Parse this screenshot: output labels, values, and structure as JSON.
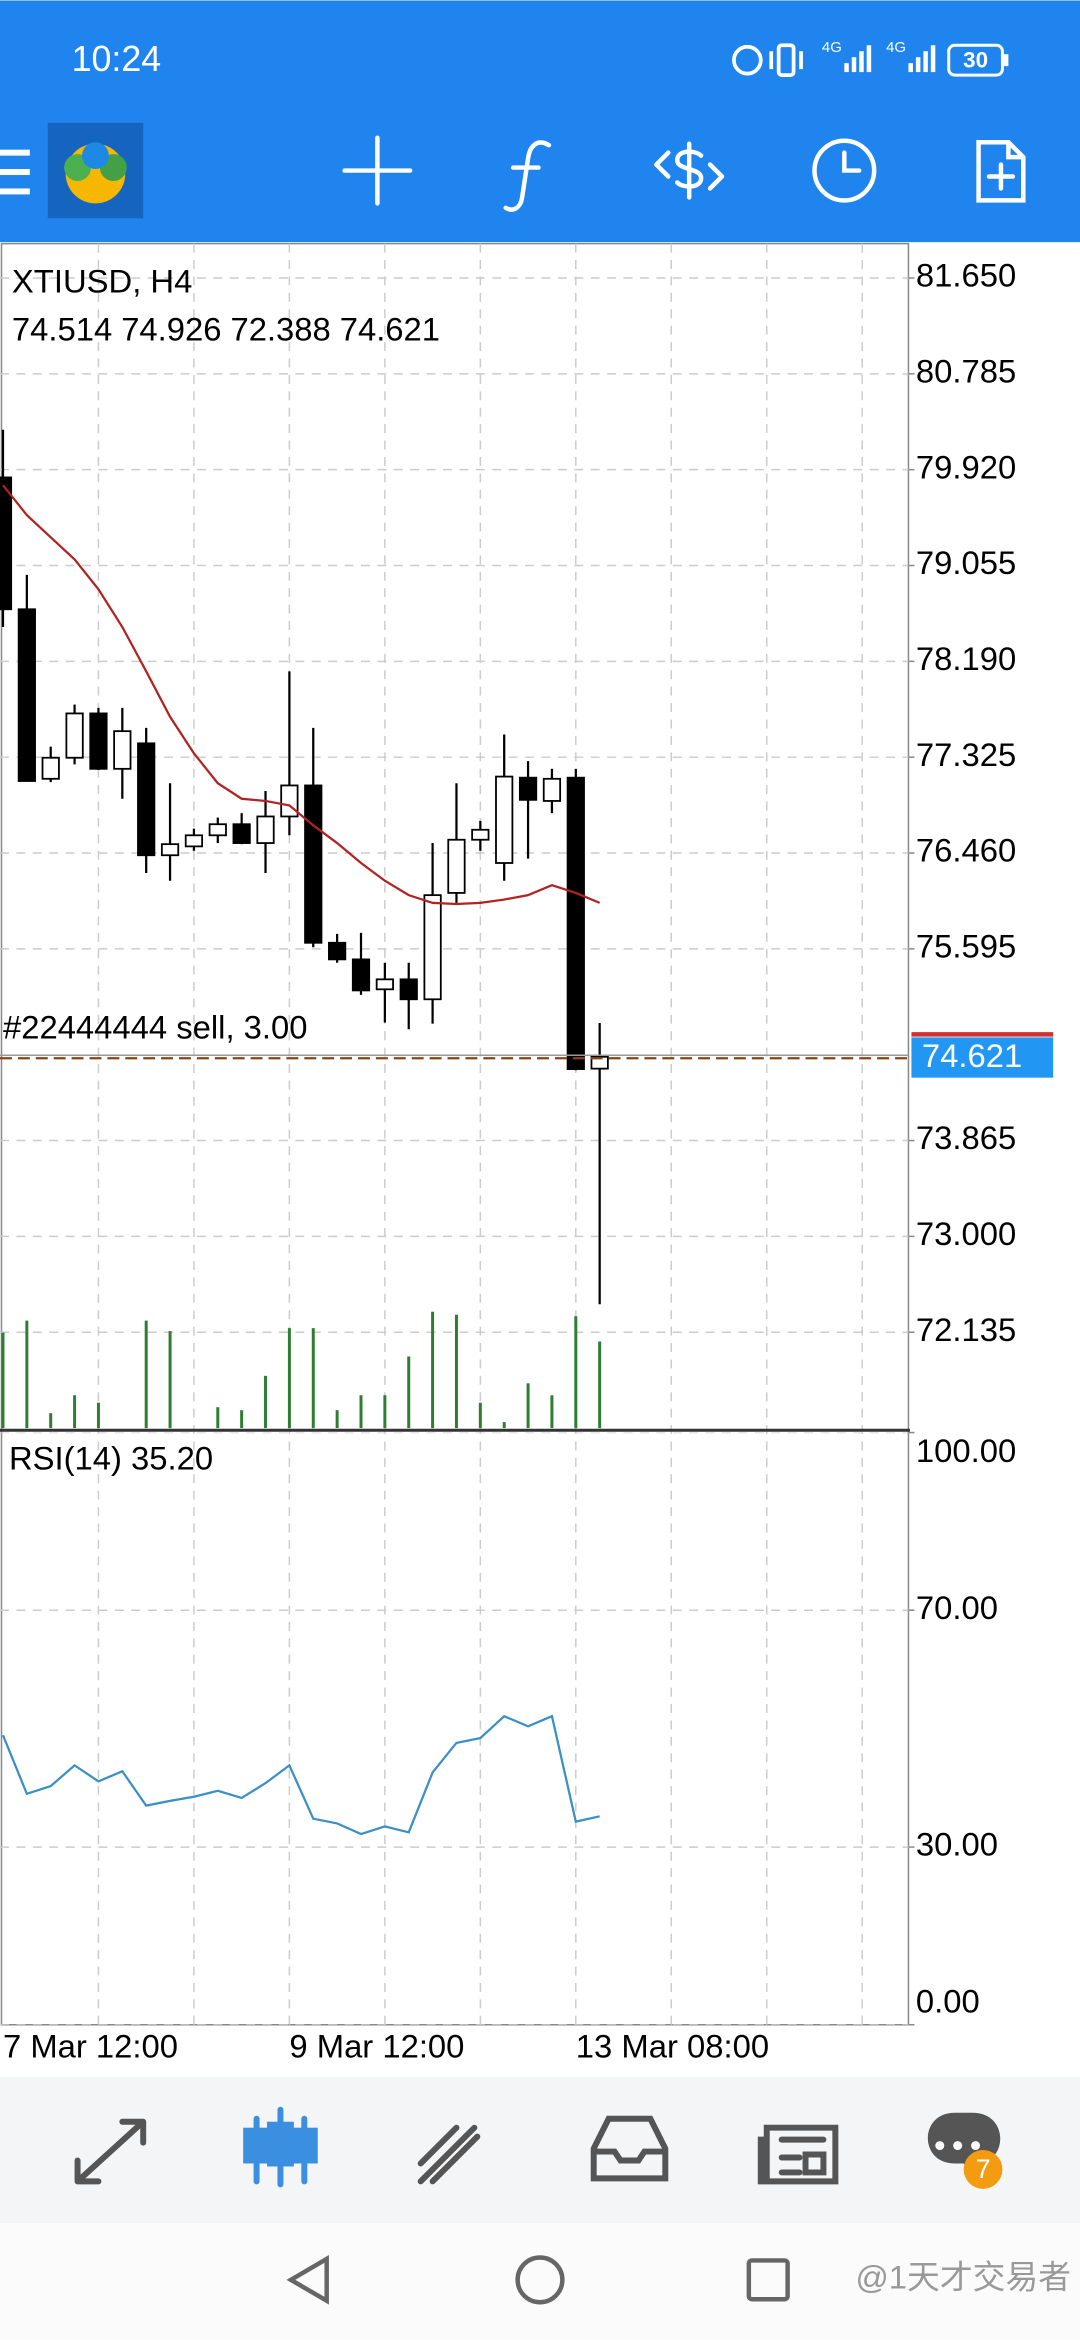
{
  "status_bar": {
    "time": "10:24",
    "network": [
      "4G",
      "4G"
    ],
    "battery": "30"
  },
  "chart_data": [
    {
      "type": "candlestick",
      "title": "XTIUSD, H4",
      "categories": [
        "7 Mar 12:00",
        null,
        null,
        null,
        null,
        null,
        null,
        null,
        null,
        null,
        null,
        null,
        "9 Mar 12:00",
        null,
        null,
        null,
        null,
        null,
        null,
        null,
        null,
        null,
        null,
        null,
        "13 Mar 08:00",
        null
      ],
      "open": [
        79.85,
        78.66,
        77.13,
        77.32,
        77.72,
        77.22,
        77.45,
        76.44,
        76.52,
        76.62,
        76.72,
        76.55,
        76.79,
        77.07,
        75.65,
        75.5,
        75.23,
        75.32,
        75.14,
        76.1,
        76.58,
        76.37,
        77.14,
        76.93,
        77.14,
        74.514
      ],
      "high": [
        80.28,
        78.97,
        77.42,
        77.8,
        77.77,
        77.77,
        77.59,
        77.09,
        76.68,
        76.78,
        76.82,
        77.02,
        78.1,
        77.59,
        75.73,
        75.74,
        75.47,
        75.47,
        76.55,
        77.09,
        76.75,
        77.53,
        77.29,
        77.22,
        77.22,
        74.926
      ],
      "low": [
        78.5,
        77.11,
        77.1,
        77.26,
        77.21,
        76.95,
        76.28,
        76.21,
        76.48,
        76.55,
        76.54,
        76.28,
        76.62,
        75.61,
        75.47,
        75.18,
        74.93,
        74.87,
        74.92,
        76.01,
        76.48,
        76.21,
        76.41,
        76.82,
        74.5,
        72.388
      ],
      "close": [
        78.66,
        77.11,
        77.32,
        77.72,
        77.22,
        77.56,
        76.44,
        76.54,
        76.62,
        76.72,
        76.55,
        76.79,
        77.07,
        75.65,
        75.5,
        75.22,
        75.32,
        75.14,
        76.08,
        76.58,
        76.67,
        77.15,
        76.94,
        77.13,
        74.51,
        74.621
      ],
      "ma_line": {
        "color": "#b22222",
        "values": [
          79.78,
          79.51,
          79.31,
          79.11,
          78.84,
          78.5,
          78.1,
          77.69,
          77.36,
          77.09,
          76.95,
          76.93,
          76.89,
          76.71,
          76.55,
          76.37,
          76.21,
          76.08,
          76.01,
          76.0,
          76.01,
          76.04,
          76.08,
          76.17,
          76.1,
          76.01
        ]
      },
      "volume": {
        "color": "#2e7d32",
        "values": [
          64,
          72,
          10,
          22,
          17,
          0,
          72,
          65,
          0,
          14,
          12,
          35,
          67,
          67,
          12,
          22,
          22,
          48,
          78,
          76,
          17,
          4,
          30,
          22,
          75,
          58
        ]
      },
      "annotations": [
        "#22444444 sell, 3.00"
      ],
      "ylim": [
        71.27,
        81.96
      ],
      "yticks": [
        {
          "value": 81.65,
          "label": "81.650"
        },
        {
          "value": 80.785,
          "label": "80.785"
        },
        {
          "value": 79.92,
          "label": "79.920"
        },
        {
          "value": 79.055,
          "label": "79.055"
        },
        {
          "value": 78.19,
          "label": "78.190"
        },
        {
          "value": 77.325,
          "label": "77.325"
        },
        {
          "value": 76.46,
          "label": "76.460"
        },
        {
          "value": 75.595,
          "label": "75.595"
        },
        {
          "value": 73.865,
          "label": "73.865"
        },
        {
          "value": 73.0,
          "label": "73.000"
        },
        {
          "value": 72.135,
          "label": "72.135"
        }
      ],
      "grid": true,
      "bull_color": "#ffffff",
      "bear_color": "#000000",
      "price_label_color": "#2196f3"
    },
    {
      "type": "line",
      "title": "RSI(14) 35.20",
      "color": "#3a8fc4",
      "values": [
        48.9,
        39.0,
        40.3,
        43.8,
        41.1,
        42.8,
        37.0,
        37.8,
        38.5,
        39.5,
        38.3,
        40.8,
        43.8,
        34.8,
        34.0,
        32.2,
        33.5,
        32.5,
        42.6,
        47.6,
        48.4,
        52.1,
        50.4,
        52.1,
        34.3,
        35.2
      ],
      "ylim": [
        0,
        100
      ],
      "yticks": [
        {
          "value": 100,
          "label": "100.00"
        },
        {
          "value": 70,
          "label": "70.00"
        },
        {
          "value": 30,
          "label": "30.00"
        },
        {
          "value": 0,
          "label": "0.00"
        }
      ],
      "grid": true
    }
  ],
  "bottom_nav": {
    "badge": "7"
  },
  "watermark": "@1天才交易者"
}
